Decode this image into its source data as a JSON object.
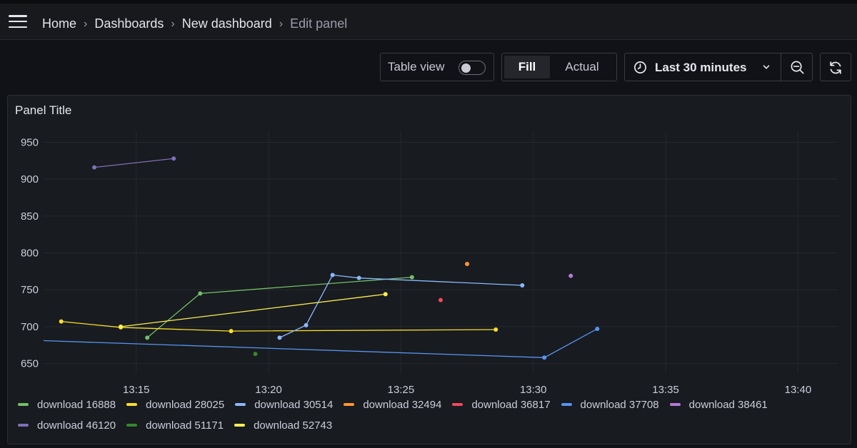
{
  "breadcrumb": {
    "items": [
      "Home",
      "Dashboards",
      "New dashboard"
    ],
    "current": "Edit panel"
  },
  "toolbar": {
    "table_view_label": "Table view",
    "table_view_on": false,
    "fill_label": "Fill",
    "actual_label": "Actual",
    "time_range": "Last 30 minutes"
  },
  "panel": {
    "title": "Panel Title"
  },
  "icons": {
    "menu": "hamburger-menu-icon",
    "time": "clock-icon",
    "dropdown": "chevron-down-icon",
    "zoom_out": "zoom-out-icon",
    "refresh": "refresh-icon"
  },
  "chart_data": {
    "type": "line",
    "x_ticks": [
      "13:15",
      "13:20",
      "13:25",
      "13:30",
      "13:35",
      "13:40"
    ],
    "y_ticks": [
      650,
      700,
      750,
      800,
      850,
      900,
      950
    ],
    "xlim": [
      "13:11:30",
      "13:41:30"
    ],
    "ylim": [
      637,
      965
    ],
    "grid": true,
    "legend_position": "bottom",
    "series": [
      {
        "name": "download 16888",
        "color": "#73bf69",
        "points": [
          [
            "13:15:25",
            685
          ],
          [
            "13:17:25",
            745
          ],
          [
            "13:25:25",
            767
          ]
        ]
      },
      {
        "name": "download 28025",
        "color": "#fade2a",
        "points": [
          [
            "13:12:10",
            707
          ],
          [
            "13:14:25",
            699
          ],
          [
            "13:18:35",
            694
          ],
          [
            "13:28:35",
            696
          ]
        ]
      },
      {
        "name": "download 30514",
        "color": "#8ab8ff",
        "points": [
          [
            "13:20:25",
            685
          ],
          [
            "13:21:25",
            702
          ],
          [
            "13:22:25",
            770
          ],
          [
            "13:23:25",
            766
          ],
          [
            "13:29:35",
            756
          ]
        ]
      },
      {
        "name": "download 32494",
        "color": "#ff9830",
        "points": [
          [
            "13:27:30",
            785
          ]
        ]
      },
      {
        "name": "download 36817",
        "color": "#f2495c",
        "points": [
          [
            "13:26:30",
            736
          ]
        ]
      },
      {
        "name": "download 37708",
        "color": "#5794f2",
        "points": [
          [
            "13:11:30",
            681
          ],
          [
            "13:30:25",
            658
          ],
          [
            "13:32:25",
            697
          ]
        ]
      },
      {
        "name": "download 38461",
        "color": "#b877d9",
        "points": [
          [
            "13:31:25",
            769
          ]
        ]
      },
      {
        "name": "download 46120",
        "color": "#806eb7",
        "points": [
          [
            "13:13:25",
            916
          ],
          [
            "13:16:25",
            928
          ]
        ]
      },
      {
        "name": "download 51171",
        "color": "#37872d",
        "points": [
          [
            "13:19:30",
            663
          ]
        ]
      },
      {
        "name": "download 52743",
        "color": "#ffee52",
        "points": [
          [
            "13:14:25",
            700
          ],
          [
            "13:24:25",
            744
          ]
        ]
      }
    ]
  }
}
